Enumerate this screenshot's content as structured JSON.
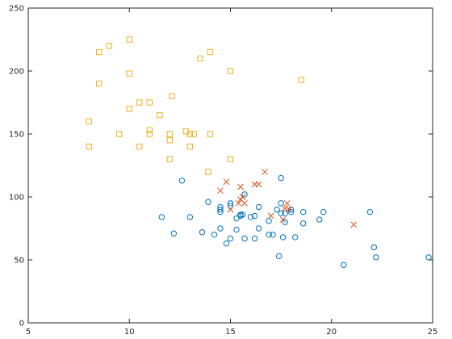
{
  "chart_data": {
    "type": "scatter",
    "title": "",
    "xlabel": "",
    "ylabel": "",
    "xlim": [
      5,
      25
    ],
    "ylim": [
      0,
      250
    ],
    "xticks": [
      "5",
      "10",
      "15",
      "20",
      "25"
    ],
    "yticks": [
      "0",
      "50",
      "100",
      "150",
      "200",
      "250"
    ],
    "grid": false,
    "series": [
      {
        "marker": "circle",
        "color": "#0072bd",
        "points": [
          [
            11.6,
            84
          ],
          [
            12.2,
            71
          ],
          [
            12.6,
            113
          ],
          [
            13.0,
            84
          ],
          [
            13.6,
            72
          ],
          [
            13.9,
            96
          ],
          [
            14.2,
            70
          ],
          [
            14.5,
            92
          ],
          [
            14.5,
            90
          ],
          [
            14.5,
            88
          ],
          [
            14.5,
            75
          ],
          [
            14.8,
            63
          ],
          [
            15.0,
            93
          ],
          [
            15.0,
            95
          ],
          [
            15.0,
            67
          ],
          [
            15.3,
            74
          ],
          [
            15.3,
            83
          ],
          [
            15.5,
            85
          ],
          [
            15.5,
            86
          ],
          [
            15.6,
            86
          ],
          [
            15.7,
            102
          ],
          [
            15.7,
            67
          ],
          [
            16.0,
            84
          ],
          [
            16.2,
            85
          ],
          [
            16.2,
            67
          ],
          [
            16.4,
            92
          ],
          [
            16.4,
            75
          ],
          [
            16.9,
            70
          ],
          [
            16.9,
            81
          ],
          [
            17.1,
            70
          ],
          [
            17.3,
            90
          ],
          [
            17.4,
            53
          ],
          [
            17.5,
            95
          ],
          [
            17.5,
            87
          ],
          [
            17.5,
            115
          ],
          [
            17.6,
            68
          ],
          [
            17.7,
            87
          ],
          [
            17.7,
            80
          ],
          [
            18.0,
            88
          ],
          [
            18.0,
            90
          ],
          [
            18.2,
            68
          ],
          [
            18.6,
            88
          ],
          [
            18.6,
            79
          ],
          [
            19.4,
            82
          ],
          [
            19.6,
            88
          ],
          [
            20.6,
            46
          ],
          [
            21.9,
            88
          ],
          [
            22.1,
            60
          ],
          [
            22.2,
            52
          ],
          [
            24.8,
            52
          ]
        ]
      },
      {
        "marker": "x",
        "color": "#d95319",
        "points": [
          [
            14.5,
            105
          ],
          [
            14.8,
            112
          ],
          [
            15.0,
            90
          ],
          [
            15.4,
            95
          ],
          [
            15.5,
            108
          ],
          [
            15.5,
            98
          ],
          [
            15.6,
            100
          ],
          [
            15.7,
            95
          ],
          [
            16.2,
            110
          ],
          [
            16.4,
            110
          ],
          [
            16.7,
            120
          ],
          [
            17.0,
            85
          ],
          [
            17.6,
            82
          ],
          [
            17.7,
            91
          ],
          [
            17.8,
            95
          ],
          [
            17.9,
            90
          ],
          [
            21.1,
            78
          ]
        ]
      },
      {
        "marker": "square",
        "color": "#edb120",
        "points": [
          [
            8.0,
            160
          ],
          [
            8.0,
            140
          ],
          [
            8.5,
            190
          ],
          [
            8.5,
            215
          ],
          [
            9.0,
            220
          ],
          [
            9.5,
            150
          ],
          [
            10.0,
            225
          ],
          [
            10.0,
            198
          ],
          [
            10.0,
            170
          ],
          [
            10.5,
            140
          ],
          [
            10.5,
            175
          ],
          [
            11.0,
            175
          ],
          [
            11.0,
            153
          ],
          [
            11.0,
            150
          ],
          [
            11.5,
            165
          ],
          [
            12.0,
            150
          ],
          [
            12.0,
            145
          ],
          [
            12.0,
            130
          ],
          [
            12.1,
            180
          ],
          [
            12.8,
            152
          ],
          [
            13.0,
            140
          ],
          [
            13.0,
            150
          ],
          [
            13.2,
            150
          ],
          [
            13.5,
            210
          ],
          [
            13.9,
            120
          ],
          [
            14.0,
            215
          ],
          [
            14.0,
            150
          ],
          [
            15.0,
            200
          ],
          [
            15.0,
            130
          ],
          [
            18.5,
            193
          ]
        ]
      }
    ]
  }
}
